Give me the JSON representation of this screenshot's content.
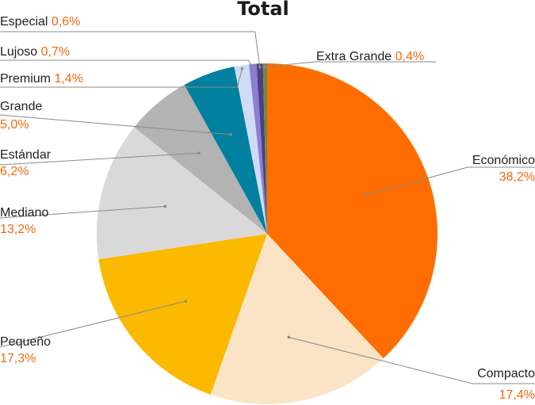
{
  "chart_data": {
    "type": "pie",
    "title": "Total",
    "colors": {
      "accent_text": "#ee6b12",
      "leader_line": "#8a8a8a"
    },
    "slices": [
      {
        "label": "Económico",
        "value": 38.2,
        "value_label": "38,2%",
        "color": "#ff6d00"
      },
      {
        "label": "Compacto",
        "value": 17.4,
        "value_label": "17,4%",
        "color": "#fbe4c6"
      },
      {
        "label": "Pequeño",
        "value": 17.3,
        "value_label": "17,3%",
        "color": "#fbb900"
      },
      {
        "label": "Mediano",
        "value": 13.2,
        "value_label": "13,2%",
        "color": "#d9d9d9"
      },
      {
        "label": "Estándar",
        "value": 6.2,
        "value_label": "6,2%",
        "color": "#b3b3b3"
      },
      {
        "label": "Grande",
        "value": 5.0,
        "value_label": "5,0%",
        "color": "#00809e"
      },
      {
        "label": "Premium",
        "value": 1.4,
        "value_label": "1,4%",
        "color": "#cfdcf7"
      },
      {
        "label": "Lujoso",
        "value": 0.7,
        "value_label": "0,7%",
        "color": "#8c7fd1"
      },
      {
        "label": "Especial",
        "value": 0.6,
        "value_label": "0,6%",
        "color": "#4b3f86"
      },
      {
        "label": "Extra Grande",
        "value": 0.4,
        "value_label": "0,4%",
        "color": "#6f8a3f"
      }
    ]
  }
}
